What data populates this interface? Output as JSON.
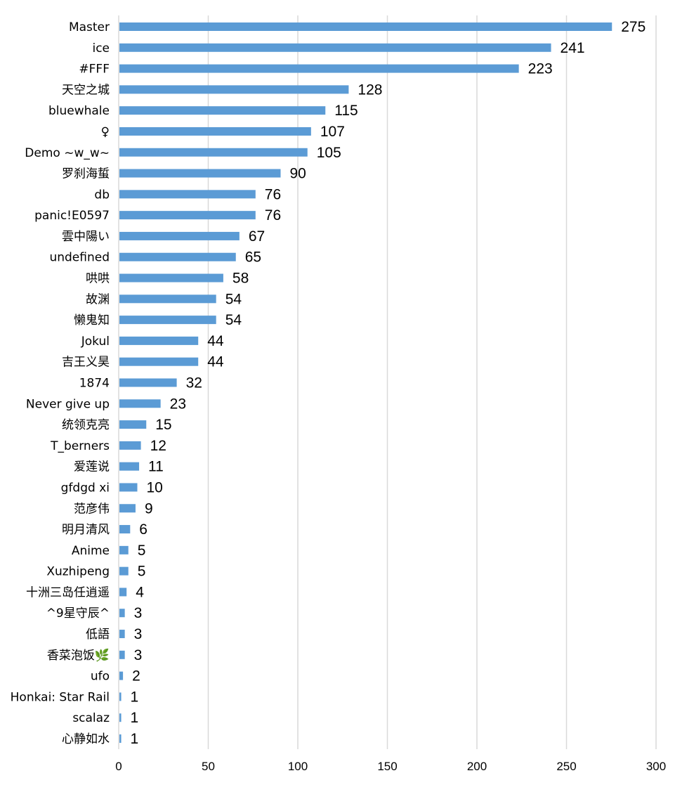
{
  "chart_data": {
    "type": "bar",
    "orientation": "horizontal",
    "categories": [
      "Master",
      "ice",
      "#FFF",
      "天空之城",
      "bluewhale",
      "♀",
      "Demo ~w_w~",
      "罗刹海蜇",
      "db",
      "panic!E0597",
      "雲中陽い",
      "undefined",
      "哄哄",
      "故渊",
      "懒鬼知",
      "Jokul",
      "吉王义昊",
      "1874",
      "Never give up",
      "统领克亮",
      "T_berners",
      "爱莲说",
      "gfdgd xi",
      "范彦伟",
      "明月清风",
      "Anime",
      "Xuzhipeng",
      "十洲三岛任逍遥",
      "^9星守辰^",
      "低語",
      "香菜泡饭🌿",
      "ufo",
      "Honkai: Star Rail",
      "scalaz",
      "心静如水"
    ],
    "values": [
      275,
      241,
      223,
      128,
      115,
      107,
      105,
      90,
      76,
      76,
      67,
      65,
      58,
      54,
      54,
      44,
      44,
      32,
      23,
      15,
      12,
      11,
      10,
      9,
      6,
      5,
      5,
      4,
      3,
      3,
      3,
      2,
      1,
      1,
      1
    ],
    "value_labels": [
      "275",
      "241",
      "223",
      "128",
      "115",
      "107",
      "105",
      "90",
      "76",
      "76",
      "67",
      "65",
      "58",
      "54",
      "54",
      "44",
      "44",
      "32",
      "23",
      "15",
      "12",
      "11",
      "10",
      "9",
      "6",
      "5",
      "5",
      "4",
      "3",
      "3",
      "3",
      "2",
      "1",
      "1",
      "1"
    ],
    "xticks": [
      "0",
      "50",
      "100",
      "150",
      "200",
      "250",
      "300"
    ],
    "xlim": [
      0,
      300
    ],
    "title": "",
    "xlabel": "",
    "ylabel": "",
    "grid": true,
    "legend": "none",
    "bar_color": "#5b9bd5"
  }
}
